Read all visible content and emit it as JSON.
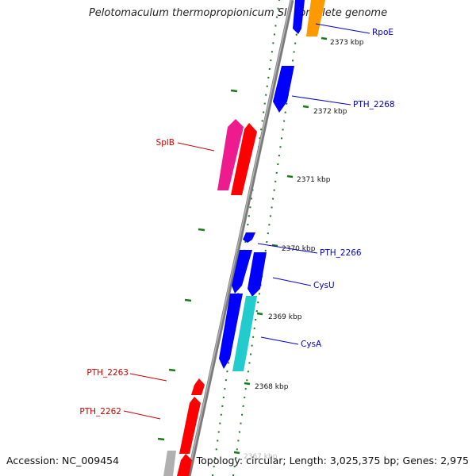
{
  "title": "Pelotomaculum thermopropionicum SI, complete genome",
  "footer": {
    "accession": "Accession: NC_009454",
    "topology": "Topology: circular; Length: 3,025,375 bp; Genes: 2,975"
  },
  "colors": {
    "backbone": "#8c8c8c",
    "tick": "#1a7a1a",
    "blue": "#0000ff",
    "red": "#ff0000",
    "pink": "#ee1b8e",
    "cyan": "#22cccc",
    "orange": "#ff9900",
    "gray": "#b0b0b0",
    "label_blue": "#0000cc",
    "label_red": "#cc0000"
  },
  "scale_labels": [
    "2373 kbp",
    "2372 kbp",
    "2371 kbp",
    "2370 kbp",
    "2369 kbp",
    "2368 kbp",
    "2367 kbp"
  ],
  "gene_labels": {
    "rpoE": "RpoE",
    "pth2268": "PTH_2268",
    "splB": "SplB",
    "pth2266": "PTH_2266",
    "cysU": "CysU",
    "cysA": "CysA",
    "pth2263": "PTH_2263",
    "pth2262": "PTH_2262"
  }
}
